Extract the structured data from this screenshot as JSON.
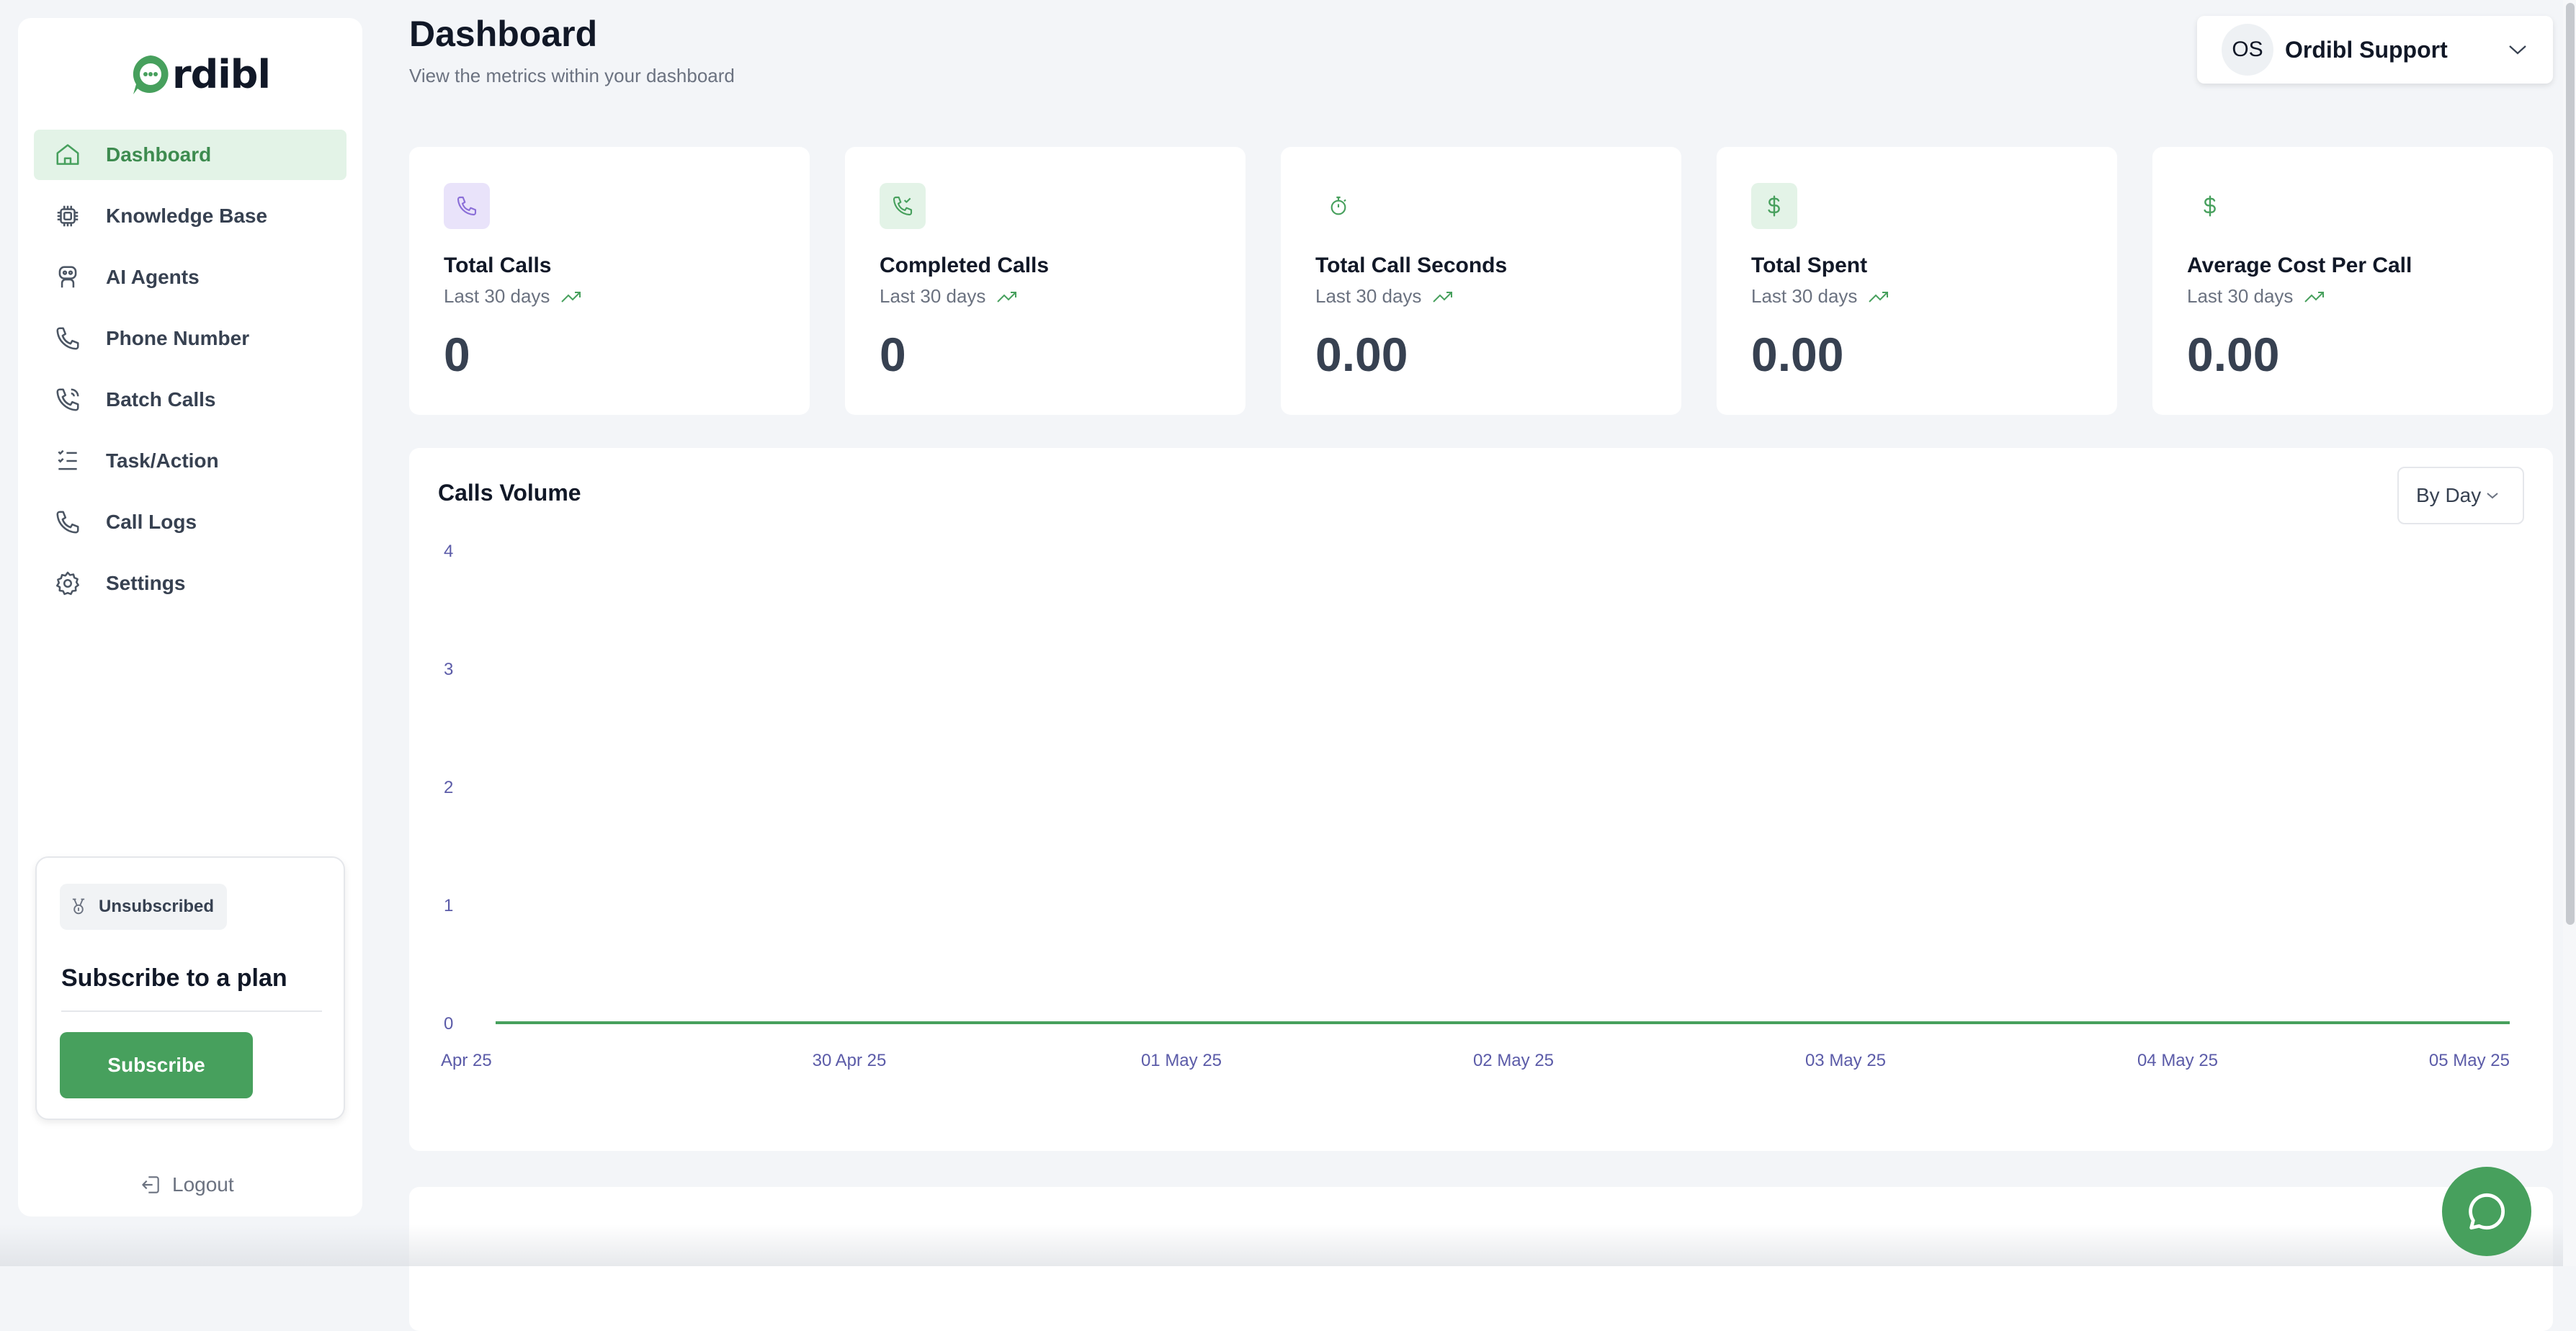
{
  "sidebar": {
    "logo_text": "rdibl",
    "items": [
      {
        "label": "Dashboard",
        "icon": "home-icon",
        "active": true
      },
      {
        "label": "Knowledge Base",
        "icon": "chip-icon",
        "active": false
      },
      {
        "label": "AI Agents",
        "icon": "robot-icon",
        "active": false
      },
      {
        "label": "Phone Number",
        "icon": "phone-icon",
        "active": false
      },
      {
        "label": "Batch Calls",
        "icon": "phone-outgoing-icon",
        "active": false
      },
      {
        "label": "Task/Action",
        "icon": "list-check-icon",
        "active": false
      },
      {
        "label": "Call Logs",
        "icon": "phone-icon",
        "active": false
      },
      {
        "label": "Settings",
        "icon": "gear-icon",
        "active": false
      }
    ],
    "subscription": {
      "badge": "Unsubscribed",
      "title": "Subscribe to a plan",
      "button": "Subscribe"
    },
    "logout": "Logout"
  },
  "header": {
    "title": "Dashboard",
    "subtitle": "View the metrics within your dashboard",
    "user": {
      "initials": "OS",
      "name": "Ordibl Support"
    }
  },
  "stats": [
    {
      "label": "Total Calls",
      "period": "Last 30 days",
      "value": "0",
      "icon": "phone-icon",
      "icon_bg": "#e9e3fa",
      "icon_color": "#8b6fd8"
    },
    {
      "label": "Completed Calls",
      "period": "Last 30 days",
      "value": "0",
      "icon": "phone-check-icon",
      "icon_bg": "#e3f3e7",
      "icon_color": "#47a05d"
    },
    {
      "label": "Total Call Seconds",
      "period": "Last 30 days",
      "value": "0.00",
      "icon": "stopwatch-icon",
      "icon_bg": "#ffffff",
      "icon_color": "#47a05d"
    },
    {
      "label": "Total Spent",
      "period": "Last 30 days",
      "value": "0.00",
      "icon": "dollar-icon",
      "icon_bg": "#e3f3e7",
      "icon_color": "#47a05d"
    },
    {
      "label": "Average Cost Per Call",
      "period": "Last 30 days",
      "value": "0.00",
      "icon": "dollar-icon",
      "icon_bg": "#ffffff",
      "icon_color": "#47a05d"
    }
  ],
  "calls_volume": {
    "title": "Calls Volume",
    "range_select": "By Day"
  },
  "chart_data": {
    "type": "line",
    "title": "Calls Volume",
    "x": [
      "Apr 25",
      "30 Apr 25",
      "01 May 25",
      "02 May 25",
      "03 May 25",
      "04 May 25",
      "05 May 25"
    ],
    "series": [
      {
        "values": [
          0,
          0,
          0,
          0,
          0,
          0,
          0
        ]
      }
    ],
    "y_ticks": [
      0,
      1,
      2,
      3,
      4
    ],
    "ylim": [
      0,
      4
    ],
    "grid": false,
    "line_color": "#47a05d"
  },
  "colors": {
    "accent": "#47a05d",
    "accent_light": "#e3f3e7",
    "tick_label": "#5b5ba8"
  }
}
